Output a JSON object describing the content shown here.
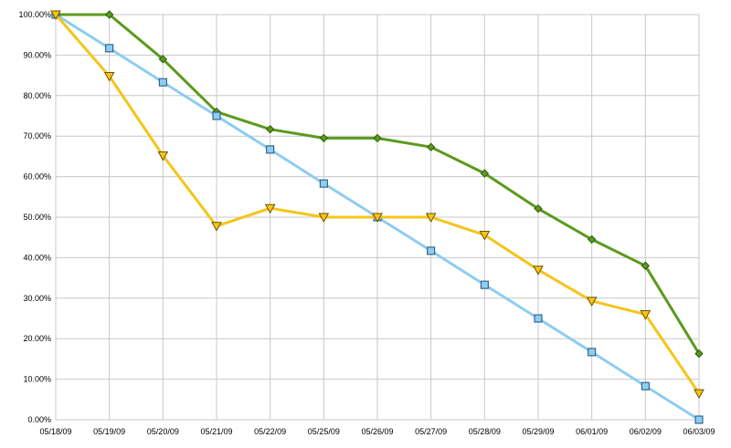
{
  "chart_data": {
    "type": "line",
    "title": "",
    "xlabel": "",
    "ylabel": "",
    "categories": [
      "05/18/09",
      "05/19/09",
      "05/20/09",
      "05/21/09",
      "05/22/09",
      "05/25/09",
      "05/26/09",
      "05/27/09",
      "05/28/09",
      "05/29/09",
      "06/01/09",
      "06/02/09",
      "06/03/09"
    ],
    "y_ticks": [
      "0.00%",
      "10.00%",
      "20.00%",
      "30.00%",
      "40.00%",
      "50.00%",
      "60.00%",
      "70.00%",
      "80.00%",
      "90.00%",
      "100.00%"
    ],
    "ylim": [
      0,
      100
    ],
    "grid": true,
    "legend": "none",
    "series": [
      {
        "color": "#5b9a1e",
        "marker": "diamond",
        "values": [
          100,
          100,
          89,
          76,
          71.7,
          69.5,
          69.5,
          67.3,
          60.8,
          52.1,
          44.5,
          38,
          16.3
        ]
      },
      {
        "color": "#8dcdf0",
        "marker": "square",
        "values": [
          100,
          91.7,
          83.3,
          75,
          66.7,
          58.3,
          50,
          41.7,
          33.3,
          25,
          16.7,
          8.3,
          0
        ]
      },
      {
        "color": "#f5c518",
        "marker": "triangle-down",
        "values": [
          100,
          84.8,
          65.2,
          47.8,
          52.2,
          50,
          50,
          50,
          45.6,
          37,
          29.3,
          26,
          6.5
        ]
      }
    ]
  }
}
